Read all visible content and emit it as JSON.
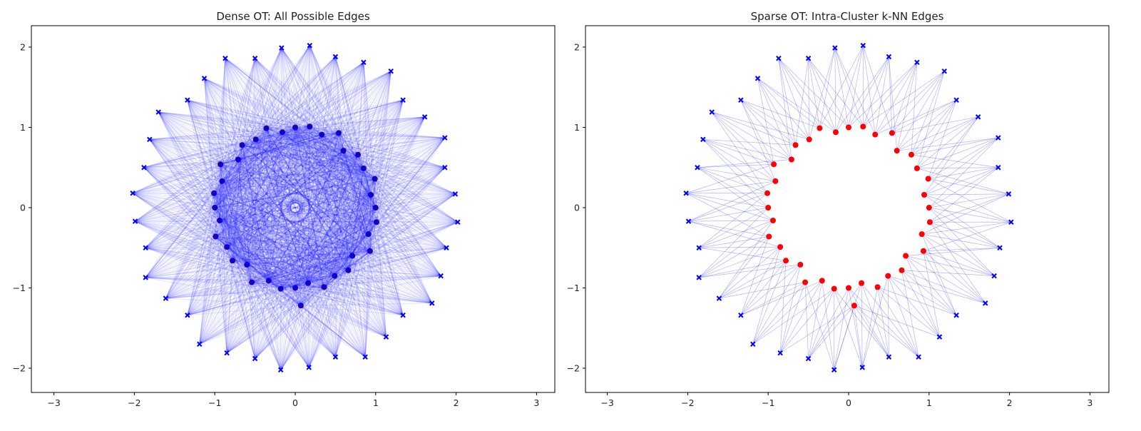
{
  "chart_data": [
    {
      "type": "scatter",
      "title": "Dense OT: All Possible Edges",
      "xlim": [
        -3.3,
        3.2
      ],
      "ylim": [
        -2.3,
        2.25
      ],
      "xticks": [
        "−3",
        "−2",
        "−1",
        "0",
        "1",
        "2",
        "3"
      ],
      "yticks": [
        "−2",
        "−1",
        "0",
        "1",
        "2"
      ],
      "grid": false,
      "edges": "all",
      "colors": {
        "source": "#ff0000",
        "target": "#0000ff",
        "edge": "#0000ff"
      }
    },
    {
      "type": "scatter",
      "title": "Sparse OT: Intra-Cluster k-NN Edges",
      "xlim": [
        -3.3,
        3.2
      ],
      "ylim": [
        -2.3,
        2.25
      ],
      "xticks": [
        "−3",
        "−2",
        "−1",
        "0",
        "1",
        "2",
        "3"
      ],
      "yticks": [
        "−2",
        "−1",
        "0",
        "1",
        "2"
      ],
      "grid": false,
      "edges": "k-NN",
      "colors": {
        "source": "#ff0000",
        "target": "#0000ff",
        "edge": "#0000ff"
      }
    }
  ],
  "points": {
    "source": [
      [
        1.0,
        0.0
      ],
      [
        0.94,
        0.16
      ],
      [
        0.99,
        0.36
      ],
      [
        0.85,
        0.49
      ],
      [
        0.78,
        0.66
      ],
      [
        0.6,
        0.71
      ],
      [
        0.54,
        0.93
      ],
      [
        0.33,
        0.91
      ],
      [
        0.18,
        1.01
      ],
      [
        0.0,
        1.0
      ],
      [
        -0.16,
        0.94
      ],
      [
        -0.36,
        0.99
      ],
      [
        -0.49,
        0.85
      ],
      [
        -0.66,
        0.78
      ],
      [
        -0.71,
        0.6
      ],
      [
        -0.93,
        0.54
      ],
      [
        -0.91,
        0.33
      ],
      [
        -1.01,
        0.18
      ],
      [
        -1.0,
        0.0
      ],
      [
        -0.94,
        -0.16
      ],
      [
        -0.99,
        -0.36
      ],
      [
        -0.85,
        -0.49
      ],
      [
        -0.78,
        -0.66
      ],
      [
        -0.6,
        -0.71
      ],
      [
        -0.54,
        -0.93
      ],
      [
        -0.33,
        -0.91
      ],
      [
        -0.18,
        -1.01
      ],
      [
        0.0,
        -1.0
      ],
      [
        0.16,
        -0.94
      ],
      [
        0.36,
        -0.99
      ],
      [
        0.49,
        -0.85
      ],
      [
        0.66,
        -0.78
      ],
      [
        0.71,
        -0.6
      ],
      [
        0.93,
        -0.54
      ],
      [
        0.91,
        -0.33
      ],
      [
        1.01,
        -0.18
      ],
      [
        0.07,
        -1.22
      ]
    ],
    "target": [
      [
        1.99,
        0.17
      ],
      [
        1.86,
        0.5
      ],
      [
        1.86,
        0.87
      ],
      [
        1.61,
        1.13
      ],
      [
        1.34,
        1.34
      ],
      [
        1.19,
        1.7
      ],
      [
        0.85,
        1.81
      ],
      [
        0.5,
        1.88
      ],
      [
        0.18,
        2.02
      ],
      [
        -0.17,
        1.99
      ],
      [
        -0.5,
        1.86
      ],
      [
        -0.87,
        1.86
      ],
      [
        -1.13,
        1.61
      ],
      [
        -1.34,
        1.34
      ],
      [
        -1.7,
        1.19
      ],
      [
        -1.81,
        0.85
      ],
      [
        -1.88,
        0.5
      ],
      [
        -2.02,
        0.18
      ],
      [
        -1.99,
        -0.17
      ],
      [
        -1.86,
        -0.5
      ],
      [
        -1.86,
        -0.87
      ],
      [
        -1.61,
        -1.13
      ],
      [
        -1.34,
        -1.34
      ],
      [
        -1.19,
        -1.7
      ],
      [
        -0.85,
        -1.81
      ],
      [
        -0.5,
        -1.88
      ],
      [
        -0.18,
        -2.02
      ],
      [
        0.17,
        -1.99
      ],
      [
        0.5,
        -1.86
      ],
      [
        0.87,
        -1.86
      ],
      [
        1.13,
        -1.61
      ],
      [
        1.34,
        -1.34
      ],
      [
        1.7,
        -1.19
      ],
      [
        1.81,
        -0.85
      ],
      [
        1.88,
        -0.5
      ],
      [
        2.02,
        -0.18
      ]
    ]
  }
}
